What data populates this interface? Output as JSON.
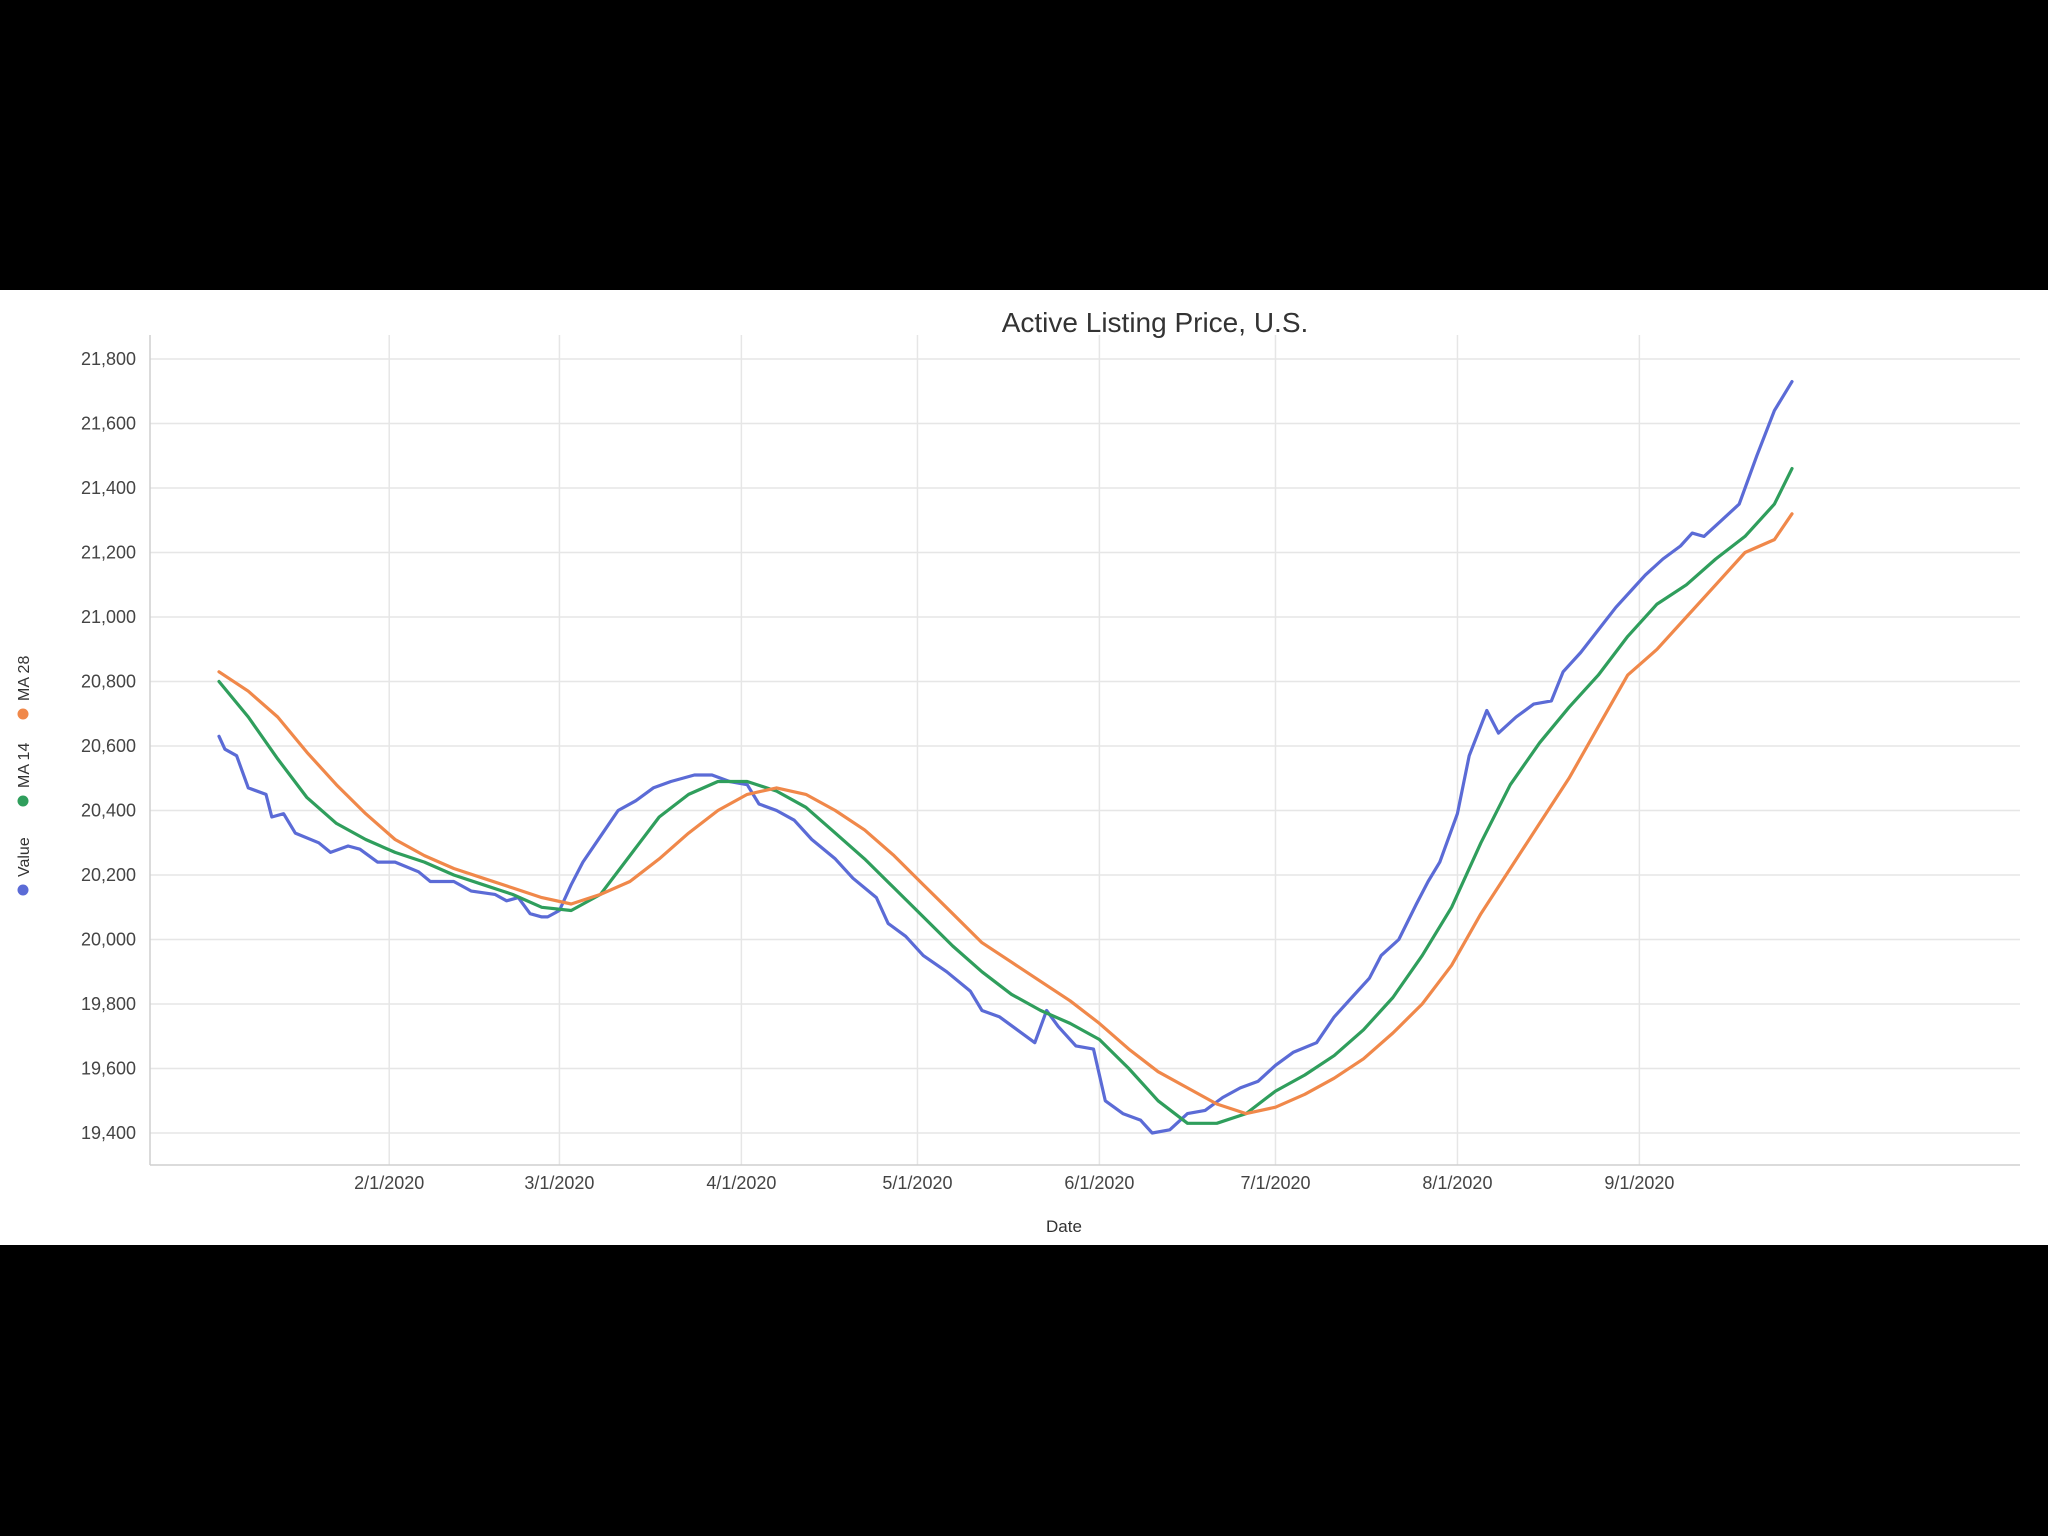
{
  "chart_data": {
    "type": "line",
    "title": "Active Listing Price, U.S.",
    "xlabel": "Date",
    "ylabel": "",
    "x_ticks": [
      "2/1/2020",
      "3/1/2020",
      "4/1/2020",
      "5/1/2020",
      "6/1/2020",
      "7/1/2020",
      "8/1/2020",
      "9/1/2020"
    ],
    "x_range": [
      "2020-01-03",
      "2020-09-28"
    ],
    "ylim": [
      19300,
      21830
    ],
    "y_ticks": [
      "19,400",
      "19,600",
      "19,800",
      "20,000",
      "20,200",
      "20,400",
      "20,600",
      "20,800",
      "21,000",
      "21,200",
      "21,400",
      "21,600",
      "21,800"
    ],
    "grid": true,
    "legend_position": "left-vertical",
    "series": [
      {
        "name": "Value",
        "color": "#5b6bd6",
        "points": [
          [
            "2020-01-03",
            20630
          ],
          [
            "2020-01-04",
            20590
          ],
          [
            "2020-01-06",
            20570
          ],
          [
            "2020-01-08",
            20470
          ],
          [
            "2020-01-11",
            20450
          ],
          [
            "2020-01-12",
            20380
          ],
          [
            "2020-01-14",
            20390
          ],
          [
            "2020-01-16",
            20330
          ],
          [
            "2020-01-20",
            20300
          ],
          [
            "2020-01-22",
            20270
          ],
          [
            "2020-01-25",
            20290
          ],
          [
            "2020-01-27",
            20280
          ],
          [
            "2020-01-30",
            20240
          ],
          [
            "2020-02-02",
            20240
          ],
          [
            "2020-02-06",
            20210
          ],
          [
            "2020-02-08",
            20180
          ],
          [
            "2020-02-12",
            20180
          ],
          [
            "2020-02-15",
            20150
          ],
          [
            "2020-02-19",
            20140
          ],
          [
            "2020-02-21",
            20120
          ],
          [
            "2020-02-23",
            20130
          ],
          [
            "2020-02-25",
            20080
          ],
          [
            "2020-02-27",
            20070
          ],
          [
            "2020-02-28",
            20070
          ],
          [
            "2020-03-01",
            20090
          ],
          [
            "2020-03-03",
            20170
          ],
          [
            "2020-03-05",
            20240
          ],
          [
            "2020-03-08",
            20320
          ],
          [
            "2020-03-11",
            20400
          ],
          [
            "2020-03-14",
            20430
          ],
          [
            "2020-03-17",
            20470
          ],
          [
            "2020-03-20",
            20490
          ],
          [
            "2020-03-24",
            20510
          ],
          [
            "2020-03-27",
            20510
          ],
          [
            "2020-03-30",
            20490
          ],
          [
            "2020-04-02",
            20480
          ],
          [
            "2020-04-04",
            20420
          ],
          [
            "2020-04-07",
            20400
          ],
          [
            "2020-04-10",
            20370
          ],
          [
            "2020-04-13",
            20310
          ],
          [
            "2020-04-17",
            20250
          ],
          [
            "2020-04-20",
            20190
          ],
          [
            "2020-04-24",
            20130
          ],
          [
            "2020-04-26",
            20050
          ],
          [
            "2020-04-29",
            20010
          ],
          [
            "2020-05-02",
            19950
          ],
          [
            "2020-05-06",
            19900
          ],
          [
            "2020-05-10",
            19840
          ],
          [
            "2020-05-12",
            19780
          ],
          [
            "2020-05-15",
            19760
          ],
          [
            "2020-05-18",
            19720
          ],
          [
            "2020-05-21",
            19680
          ],
          [
            "2020-05-23",
            19780
          ],
          [
            "2020-05-25",
            19730
          ],
          [
            "2020-05-28",
            19670
          ],
          [
            "2020-05-31",
            19660
          ],
          [
            "2020-06-02",
            19500
          ],
          [
            "2020-06-05",
            19460
          ],
          [
            "2020-06-08",
            19440
          ],
          [
            "2020-06-10",
            19400
          ],
          [
            "2020-06-13",
            19410
          ],
          [
            "2020-06-16",
            19460
          ],
          [
            "2020-06-19",
            19470
          ],
          [
            "2020-06-22",
            19510
          ],
          [
            "2020-06-25",
            19540
          ],
          [
            "2020-06-28",
            19560
          ],
          [
            "2020-07-01",
            19610
          ],
          [
            "2020-07-04",
            19650
          ],
          [
            "2020-07-08",
            19680
          ],
          [
            "2020-07-11",
            19760
          ],
          [
            "2020-07-14",
            19820
          ],
          [
            "2020-07-17",
            19880
          ],
          [
            "2020-07-19",
            19950
          ],
          [
            "2020-07-22",
            20000
          ],
          [
            "2020-07-25",
            20110
          ],
          [
            "2020-07-27",
            20180
          ],
          [
            "2020-07-29",
            20240
          ],
          [
            "2020-08-01",
            20390
          ],
          [
            "2020-08-03",
            20570
          ],
          [
            "2020-08-06",
            20710
          ],
          [
            "2020-08-08",
            20640
          ],
          [
            "2020-08-11",
            20690
          ],
          [
            "2020-08-14",
            20730
          ],
          [
            "2020-08-17",
            20740
          ],
          [
            "2020-08-19",
            20830
          ],
          [
            "2020-08-22",
            20890
          ],
          [
            "2020-08-25",
            20960
          ],
          [
            "2020-08-28",
            21030
          ],
          [
            "2020-08-31",
            21090
          ],
          [
            "2020-09-02",
            21130
          ],
          [
            "2020-09-05",
            21180
          ],
          [
            "2020-09-08",
            21220
          ],
          [
            "2020-09-10",
            21260
          ],
          [
            "2020-09-12",
            21250
          ],
          [
            "2020-09-15",
            21300
          ],
          [
            "2020-09-18",
            21350
          ],
          [
            "2020-09-21",
            21500
          ],
          [
            "2020-09-24",
            21640
          ],
          [
            "2020-09-27",
            21730
          ]
        ]
      },
      {
        "name": "MA 14",
        "color": "#2f9e5c",
        "points": [
          [
            "2020-01-03",
            20800
          ],
          [
            "2020-01-08",
            20690
          ],
          [
            "2020-01-13",
            20560
          ],
          [
            "2020-01-18",
            20440
          ],
          [
            "2020-01-23",
            20360
          ],
          [
            "2020-01-28",
            20310
          ],
          [
            "2020-02-02",
            20270
          ],
          [
            "2020-02-07",
            20240
          ],
          [
            "2020-02-12",
            20200
          ],
          [
            "2020-02-17",
            20170
          ],
          [
            "2020-02-22",
            20140
          ],
          [
            "2020-02-27",
            20100
          ],
          [
            "2020-03-03",
            20090
          ],
          [
            "2020-03-08",
            20140
          ],
          [
            "2020-03-13",
            20260
          ],
          [
            "2020-03-18",
            20380
          ],
          [
            "2020-03-23",
            20450
          ],
          [
            "2020-03-28",
            20490
          ],
          [
            "2020-04-02",
            20490
          ],
          [
            "2020-04-07",
            20460
          ],
          [
            "2020-04-12",
            20410
          ],
          [
            "2020-04-17",
            20330
          ],
          [
            "2020-04-22",
            20250
          ],
          [
            "2020-04-27",
            20160
          ],
          [
            "2020-05-02",
            20070
          ],
          [
            "2020-05-07",
            19980
          ],
          [
            "2020-05-12",
            19900
          ],
          [
            "2020-05-17",
            19830
          ],
          [
            "2020-05-22",
            19780
          ],
          [
            "2020-05-27",
            19740
          ],
          [
            "2020-06-01",
            19690
          ],
          [
            "2020-06-06",
            19600
          ],
          [
            "2020-06-11",
            19500
          ],
          [
            "2020-06-16",
            19430
          ],
          [
            "2020-06-21",
            19430
          ],
          [
            "2020-06-26",
            19460
          ],
          [
            "2020-07-01",
            19530
          ],
          [
            "2020-07-06",
            19580
          ],
          [
            "2020-07-11",
            19640
          ],
          [
            "2020-07-16",
            19720
          ],
          [
            "2020-07-21",
            19820
          ],
          [
            "2020-07-26",
            19950
          ],
          [
            "2020-07-31",
            20100
          ],
          [
            "2020-08-05",
            20300
          ],
          [
            "2020-08-10",
            20480
          ],
          [
            "2020-08-15",
            20610
          ],
          [
            "2020-08-20",
            20720
          ],
          [
            "2020-08-25",
            20820
          ],
          [
            "2020-08-30",
            20940
          ],
          [
            "2020-09-04",
            21040
          ],
          [
            "2020-09-09",
            21100
          ],
          [
            "2020-09-14",
            21180
          ],
          [
            "2020-09-19",
            21250
          ],
          [
            "2020-09-24",
            21350
          ],
          [
            "2020-09-27",
            21460
          ]
        ]
      },
      {
        "name": "MA 28",
        "color": "#f0884a",
        "points": [
          [
            "2020-01-03",
            20830
          ],
          [
            "2020-01-08",
            20770
          ],
          [
            "2020-01-13",
            20690
          ],
          [
            "2020-01-18",
            20580
          ],
          [
            "2020-01-23",
            20480
          ],
          [
            "2020-01-28",
            20390
          ],
          [
            "2020-02-02",
            20310
          ],
          [
            "2020-02-07",
            20260
          ],
          [
            "2020-02-12",
            20220
          ],
          [
            "2020-02-17",
            20190
          ],
          [
            "2020-02-22",
            20160
          ],
          [
            "2020-02-27",
            20130
          ],
          [
            "2020-03-03",
            20110
          ],
          [
            "2020-03-08",
            20140
          ],
          [
            "2020-03-13",
            20180
          ],
          [
            "2020-03-18",
            20250
          ],
          [
            "2020-03-23",
            20330
          ],
          [
            "2020-03-28",
            20400
          ],
          [
            "2020-04-02",
            20450
          ],
          [
            "2020-04-07",
            20470
          ],
          [
            "2020-04-12",
            20450
          ],
          [
            "2020-04-17",
            20400
          ],
          [
            "2020-04-22",
            20340
          ],
          [
            "2020-04-27",
            20260
          ],
          [
            "2020-05-02",
            20170
          ],
          [
            "2020-05-07",
            20080
          ],
          [
            "2020-05-12",
            19990
          ],
          [
            "2020-05-17",
            19930
          ],
          [
            "2020-05-22",
            19870
          ],
          [
            "2020-05-27",
            19810
          ],
          [
            "2020-06-01",
            19740
          ],
          [
            "2020-06-06",
            19660
          ],
          [
            "2020-06-11",
            19590
          ],
          [
            "2020-06-16",
            19540
          ],
          [
            "2020-06-21",
            19490
          ],
          [
            "2020-06-26",
            19460
          ],
          [
            "2020-07-01",
            19480
          ],
          [
            "2020-07-06",
            19520
          ],
          [
            "2020-07-11",
            19570
          ],
          [
            "2020-07-16",
            19630
          ],
          [
            "2020-07-21",
            19710
          ],
          [
            "2020-07-26",
            19800
          ],
          [
            "2020-07-31",
            19920
          ],
          [
            "2020-08-05",
            20080
          ],
          [
            "2020-08-10",
            20220
          ],
          [
            "2020-08-15",
            20360
          ],
          [
            "2020-08-20",
            20500
          ],
          [
            "2020-08-25",
            20660
          ],
          [
            "2020-08-30",
            20820
          ],
          [
            "2020-09-04",
            20900
          ],
          [
            "2020-09-09",
            21000
          ],
          [
            "2020-09-14",
            21100
          ],
          [
            "2020-09-19",
            21200
          ],
          [
            "2020-09-24",
            21240
          ],
          [
            "2020-09-27",
            21320
          ]
        ]
      }
    ]
  }
}
